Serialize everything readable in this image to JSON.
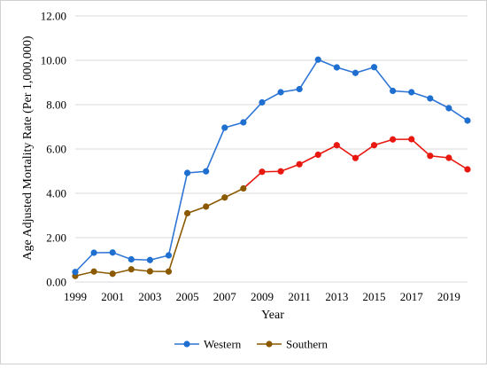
{
  "colors": {
    "western": "#2E75D6",
    "western_marker": "#1F6FD1",
    "southern_lower": "#8B5A00",
    "southern_upper": "#E8170F",
    "gridline": "#d9d9d9"
  },
  "chart_data": {
    "type": "line",
    "title": "",
    "xlabel": "Year",
    "ylabel": "Age Adjusted Mortality Rate (Per 1,000,000)",
    "ylim": [
      0,
      12
    ],
    "yticks": [
      "0.00",
      "2.00",
      "4.00",
      "6.00",
      "8.00",
      "10.00",
      "12.00"
    ],
    "x": [
      1999,
      2000,
      2001,
      2002,
      2003,
      2004,
      2005,
      2006,
      2007,
      2008,
      2009,
      2010,
      2011,
      2012,
      2013,
      2014,
      2015,
      2016,
      2017,
      2018,
      2019,
      2020
    ],
    "xtick_labels": [
      "1999",
      "2001",
      "2003",
      "2005",
      "2007",
      "2009",
      "2011",
      "2013",
      "2015",
      "2017",
      "2019"
    ],
    "grid": true,
    "legend_position": "bottom",
    "series": [
      {
        "name": "Western",
        "values": [
          0.45,
          1.32,
          1.33,
          1.02,
          0.99,
          1.2,
          4.92,
          4.99,
          6.96,
          7.2,
          8.1,
          8.56,
          8.7,
          10.03,
          9.68,
          9.43,
          9.69,
          8.62,
          8.56,
          8.28,
          7.84,
          7.28
        ]
      },
      {
        "name": "Southern",
        "values": [
          0.27,
          0.47,
          0.37,
          0.57,
          0.48,
          0.47,
          3.1,
          3.4,
          3.81,
          4.22,
          4.97,
          4.99,
          5.31,
          5.74,
          6.17,
          5.59,
          6.17,
          6.43,
          6.44,
          5.69,
          5.6,
          5.08
        ]
      }
    ]
  }
}
